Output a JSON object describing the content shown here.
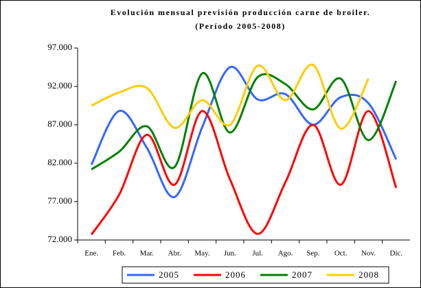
{
  "chart_data": {
    "type": "line",
    "title": "Evolución mensual previsión producción carne de broiler.",
    "subtitle": "(Período 2005-2008)",
    "categories": [
      "Ene.",
      "Feb.",
      "Mar.",
      "Abr.",
      "May.",
      "Jun.",
      "Jul.",
      "Ago.",
      "Sep.",
      "Oct.",
      "Nov.",
      "Dic."
    ],
    "series": [
      {
        "name": "2005",
        "color": "#3366ff",
        "values": [
          81800,
          88800,
          84000,
          77600,
          86700,
          94500,
          90300,
          91000,
          87000,
          90600,
          89800,
          82500
        ]
      },
      {
        "name": "2006",
        "color": "#ff0000",
        "values": [
          72700,
          77900,
          85700,
          79200,
          88800,
          79900,
          72800,
          79500,
          87000,
          79200,
          88800,
          78800
        ]
      },
      {
        "name": "2007",
        "color": "#008000",
        "values": [
          81200,
          83500,
          86800,
          81500,
          93700,
          86000,
          93200,
          92300,
          89000,
          93000,
          85000,
          92700
        ]
      },
      {
        "name": "2008",
        "color": "#ffcc00",
        "values": [
          89500,
          91200,
          91800,
          86600,
          90200,
          87000,
          94700,
          90200,
          94800,
          86500,
          93000,
          null
        ]
      }
    ],
    "ylim": [
      72000,
      97000
    ],
    "yticks": [
      {
        "value": 72000,
        "label": "72.000"
      },
      {
        "value": 77000,
        "label": "77.000"
      },
      {
        "value": 82000,
        "label": "82.000"
      },
      {
        "value": 87000,
        "label": "87.000"
      },
      {
        "value": 92000,
        "label": "92.000"
      },
      {
        "value": 97000,
        "label": "97.000"
      }
    ],
    "grid": false,
    "legend": "bottom"
  }
}
